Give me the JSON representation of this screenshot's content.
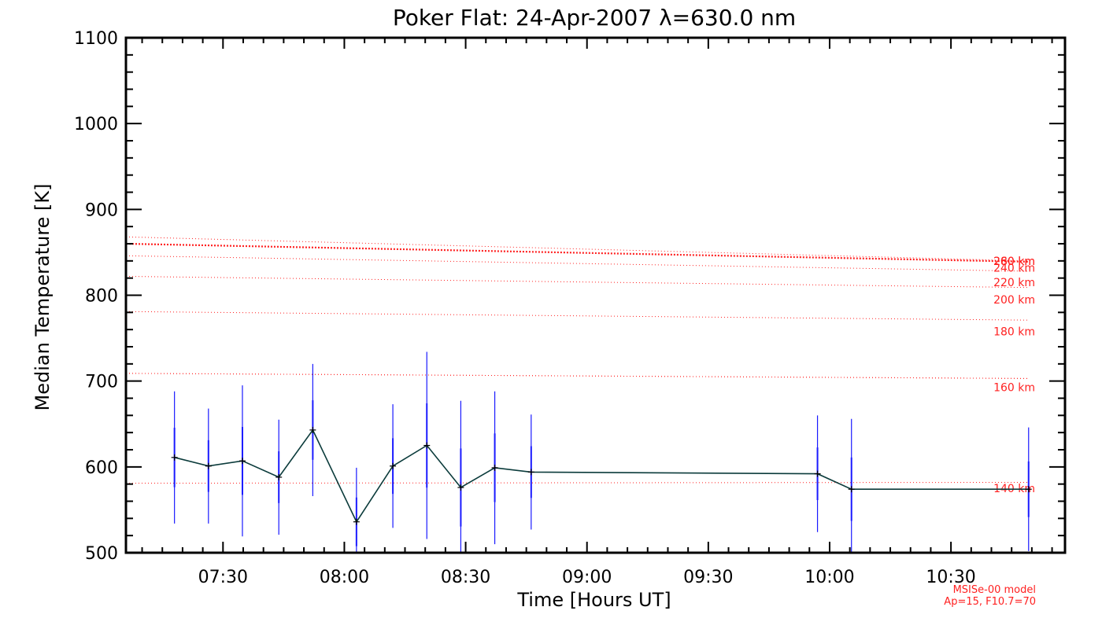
{
  "chart_data": {
    "type": "line",
    "title": "Poker Flat: 24-Apr-2007 λ=630.0 nm",
    "xlabel": "Time [Hours UT]",
    "ylabel": "Median Temperature [K]",
    "xlim": [
      7.1,
      10.97
    ],
    "ylim": [
      500,
      1100
    ],
    "x_ticks": [
      {
        "value": 7.5,
        "label": "07:30"
      },
      {
        "value": 8.0,
        "label": "08:00"
      },
      {
        "value": 8.5,
        "label": "08:30"
      },
      {
        "value": 9.0,
        "label": "09:00"
      },
      {
        "value": 9.5,
        "label": "09:30"
      },
      {
        "value": 10.0,
        "label": "10:00"
      },
      {
        "value": 10.5,
        "label": "10:30"
      }
    ],
    "y_ticks": [
      500,
      600,
      700,
      800,
      900,
      1000,
      1100
    ],
    "measurement": {
      "name": "Median Temperature",
      "line_color": "#0b3b3b",
      "errorbar_color": "#1a1aff",
      "points": [
        {
          "x": 7.3,
          "y": 611,
          "err": 77
        },
        {
          "x": 7.44,
          "y": 601,
          "err": 67
        },
        {
          "x": 7.58,
          "y": 607,
          "err": 88
        },
        {
          "x": 7.73,
          "y": 588,
          "err": 67
        },
        {
          "x": 7.87,
          "y": 643,
          "err": 77
        },
        {
          "x": 8.05,
          "y": 536,
          "err": 63
        },
        {
          "x": 8.2,
          "y": 601,
          "err": 72
        },
        {
          "x": 8.34,
          "y": 625,
          "err": 109
        },
        {
          "x": 8.48,
          "y": 576,
          "err": 101
        },
        {
          "x": 8.62,
          "y": 599,
          "err": 89
        },
        {
          "x": 8.77,
          "y": 594,
          "err": 67
        },
        {
          "x": 9.95,
          "y": 592,
          "err": 68
        },
        {
          "x": 10.09,
          "y": 574,
          "err": 82
        },
        {
          "x": 10.82,
          "y": 574,
          "err": 72
        }
      ]
    },
    "model": {
      "name": "MSISe-00 model",
      "color": "#ff2020",
      "params": "Ap=15, F10.7=70",
      "series": [
        {
          "name": "280 km",
          "start": 868,
          "end": 840,
          "label_offset_y": 0
        },
        {
          "name": "260 km",
          "start": 860,
          "end": 839,
          "label_offset_y": 0
        },
        {
          "name": "240 km",
          "start": 846,
          "end": 828,
          "label_offset_y": 6
        },
        {
          "name": "220 km",
          "start": 822,
          "end": 809,
          "label_offset_y": 0
        },
        {
          "name": "200 km",
          "start": 781,
          "end": 771,
          "label_offset_y": 0
        },
        {
          "name": "180 km",
          "start": 709,
          "end": 703,
          "label_offset_y": 0
        },
        {
          "name": "140 km",
          "start": 581,
          "end": 582,
          "label_offset_y": 0
        }
      ],
      "label_positions": {
        "280 km": 840,
        "260 km": 840,
        "240 km": 832,
        "220 km": 815,
        "200 km": 795,
        "180 km": 758,
        "160 km": 693,
        "140 km": 575
      }
    },
    "footnote_lines": [
      "MSISe-00 model",
      "Ap=15, F10.7=70"
    ]
  }
}
